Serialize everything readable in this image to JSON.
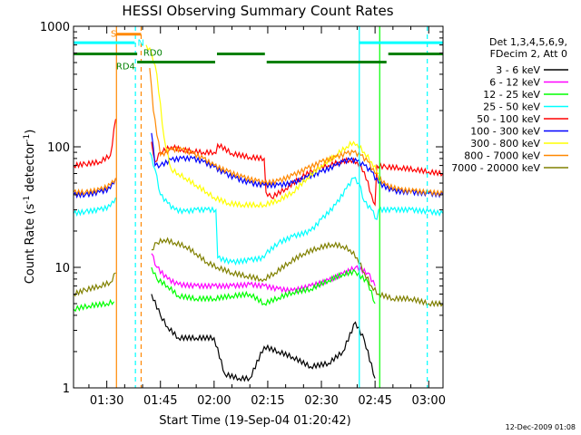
{
  "chart_data": {
    "type": "line",
    "title": "HESSI Observing Summary Count Rates",
    "xlabel": "Start Time (19-Sep-04 01:20:42)",
    "ylabel_main": "Count Rate (s",
    "ylabel_sup1": "-1",
    "ylabel_mid": " detector",
    "ylabel_sup2": "-1",
    "ylabel_end": ")",
    "yscale": "log",
    "ylim": [
      1,
      1000
    ],
    "xlim_min": [
      80.7,
      184
    ],
    "y_ticks": [
      {
        "v": 1,
        "label": "1"
      },
      {
        "v": 10,
        "label": "10"
      },
      {
        "v": 100,
        "label": "100"
      },
      {
        "v": 1000,
        "label": "1000"
      }
    ],
    "x_ticks": [
      {
        "t": 90,
        "label": "01:30"
      },
      {
        "t": 105,
        "label": "01:45"
      },
      {
        "t": 120,
        "label": "02:00"
      },
      {
        "t": 135,
        "label": "02:15"
      },
      {
        "t": 150,
        "label": "02:30"
      },
      {
        "t": 165,
        "label": "02:45"
      },
      {
        "t": 180,
        "label": "03:00"
      }
    ],
    "legend": {
      "position": "right",
      "header": [
        "Det 1,3,4,5,6,9,",
        "FDecim 2, Att 0"
      ]
    },
    "series": [
      {
        "name": "3 - 6 keV",
        "color": "#000000",
        "x": [
          80.7,
          87,
          92.5,
          100,
          102.5,
          105,
          107,
          110,
          115,
          120,
          123,
          127,
          130,
          134,
          138,
          142,
          147,
          152,
          156,
          159.5,
          162,
          165,
          166.5
        ],
        "y": [
          null,
          null,
          null,
          null,
          6,
          4,
          3.2,
          2.6,
          2.6,
          2.6,
          1.3,
          1.2,
          1.2,
          2.2,
          2.0,
          1.8,
          1.5,
          1.6,
          2.0,
          3.5,
          2.5,
          1.2,
          null
        ]
      },
      {
        "name": "6 - 12 keV",
        "color": "#ff00ff",
        "x": [
          80.7,
          100,
          102.5,
          104,
          107,
          110,
          115,
          120,
          125,
          130,
          134,
          138,
          142,
          147,
          152,
          156,
          159.5,
          163,
          165,
          166.5
        ],
        "y": [
          null,
          null,
          13,
          10,
          8,
          7.2,
          7.0,
          7.0,
          7.0,
          7.2,
          7.0,
          6.6,
          6.4,
          7.0,
          7.8,
          8.8,
          10,
          9.0,
          7.0,
          null
        ]
      },
      {
        "name": "12 - 25 keV",
        "color": "#00ff00",
        "x": [
          80.7,
          85,
          90,
          92,
          93,
          100,
          102.5,
          104,
          107,
          110,
          115,
          120,
          125,
          130,
          134,
          138,
          142,
          147,
          152,
          156,
          159.5,
          163,
          165,
          166.5,
          172,
          178,
          184
        ],
        "y": [
          4.5,
          4.8,
          5.0,
          5.2,
          null,
          null,
          10,
          8,
          7.0,
          5.8,
          5.5,
          5.5,
          5.8,
          6.0,
          5.0,
          5.6,
          6.2,
          6.6,
          7.8,
          8.8,
          9.2,
          7.5,
          5.0,
          null,
          null,
          null,
          null
        ]
      },
      {
        "name": "25 - 50 keV",
        "color": "#00ffff",
        "x": [
          80.7,
          84,
          88,
          91,
          92.5,
          93.5,
          100,
          102,
          103.5,
          105,
          107,
          109,
          112,
          115,
          118,
          120.5,
          121,
          125,
          130,
          134,
          134.5,
          138,
          142,
          147,
          150,
          154,
          157,
          159,
          160.5,
          162,
          164,
          165.5,
          166,
          170,
          175,
          180,
          184
        ],
        "y": [
          28,
          29,
          30,
          32,
          38,
          null,
          null,
          90,
          65,
          40,
          34,
          30,
          29,
          30,
          30,
          30,
          12,
          11,
          11.5,
          12,
          13,
          16,
          18,
          20,
          25,
          33,
          45,
          55,
          50,
          35,
          30,
          25,
          30,
          30,
          30,
          29,
          28
        ]
      },
      {
        "name": "50 - 100 keV",
        "color": "#ff0000",
        "x": [
          80.7,
          84,
          88,
          91,
          92.5,
          93.5,
          100,
          102.5,
          103.5,
          105,
          108,
          111,
          114,
          117,
          120,
          120.5,
          121,
          125,
          130,
          134,
          134.5,
          136,
          140,
          144,
          148,
          152,
          155,
          158,
          160,
          162,
          164,
          165,
          165.5,
          168,
          172,
          176,
          180,
          184
        ],
        "y": [
          70,
          72,
          75,
          85,
          170,
          null,
          null,
          110,
          75,
          90,
          100,
          95,
          92,
          90,
          90,
          88,
          105,
          88,
          82,
          80,
          42,
          38,
          45,
          55,
          65,
          70,
          75,
          78,
          75,
          62,
          40,
          33,
          70,
          68,
          67,
          65,
          62,
          60
        ]
      },
      {
        "name": "100 - 300 keV",
        "color": "#0000ff",
        "x": [
          80.7,
          84,
          88,
          91,
          92.5,
          93.5,
          100,
          102.5,
          103.5,
          105,
          108,
          111,
          114,
          117,
          120,
          123,
          126,
          130,
          134,
          138,
          142,
          146,
          150,
          154,
          156,
          158,
          160,
          162,
          164,
          166,
          170,
          175,
          180,
          184
        ],
        "y": [
          40,
          40,
          42,
          45,
          55,
          null,
          null,
          130,
          70,
          70,
          78,
          80,
          80,
          75,
          68,
          60,
          55,
          50,
          48,
          48,
          50,
          56,
          62,
          70,
          75,
          78,
          76,
          70,
          62,
          50,
          43,
          42,
          41,
          40
        ]
      },
      {
        "name": "300 - 800 keV",
        "color": "#ffff00",
        "x": [
          80.7,
          100,
          101,
          102.5,
          104,
          106,
          108,
          110,
          112,
          115,
          118,
          120,
          124,
          128,
          132,
          134,
          138,
          142,
          146,
          150,
          154,
          157,
          159,
          160,
          162,
          164,
          166,
          170,
          175,
          180,
          184
        ],
        "y": [
          null,
          null,
          700,
          600,
          400,
          120,
          65,
          60,
          55,
          48,
          42,
          38,
          34,
          33,
          33,
          33,
          36,
          42,
          55,
          70,
          85,
          100,
          110,
          105,
          90,
          75,
          60,
          null,
          null,
          null,
          null
        ]
      },
      {
        "name": "800 - 7000 keV",
        "color": "#ff8800",
        "x": [
          80.7,
          84,
          88,
          91,
          92.5,
          93.5,
          100,
          102,
          103,
          105,
          108,
          111,
          114,
          117,
          120,
          124,
          128,
          132,
          134,
          138,
          142,
          146,
          150,
          154,
          157,
          159,
          161,
          163,
          165,
          168,
          172,
          176,
          180,
          184
        ],
        "y": [
          42,
          42,
          44,
          48,
          55,
          null,
          null,
          450,
          200,
          85,
          95,
          95,
          88,
          80,
          70,
          62,
          56,
          52,
          50,
          52,
          58,
          66,
          75,
          82,
          88,
          90,
          85,
          75,
          60,
          48,
          44,
          43,
          42,
          41
        ]
      },
      {
        "name": "7000 - 20000 keV",
        "color": "#808000",
        "x": [
          80.7,
          84,
          88,
          91,
          92.5,
          93.5,
          100,
          102.5,
          104,
          106,
          109,
          112,
          115,
          118,
          121,
          125,
          129,
          133,
          134,
          137,
          141,
          145,
          149,
          153,
          156,
          158,
          160,
          162,
          164,
          166,
          170,
          175,
          180,
          184
        ],
        "y": [
          6.0,
          6.5,
          7.0,
          7.5,
          9.0,
          null,
          null,
          14,
          16,
          17,
          16,
          15,
          13,
          11,
          10,
          9,
          8.5,
          8,
          8,
          9,
          11,
          13,
          14.5,
          15.5,
          15,
          14,
          12,
          9,
          7,
          6,
          5.5,
          5.5,
          5.0,
          5.0
        ]
      }
    ],
    "markers": {
      "vlines": [
        {
          "t": 92.7,
          "color": "#ff8800",
          "style": "solid"
        },
        {
          "t": 98.0,
          "color": "#00ffff",
          "style": "dashed"
        },
        {
          "t": 99.6,
          "color": "#ff8800",
          "style": "dashed"
        },
        {
          "t": 160.6,
          "color": "#00ffff",
          "style": "solid"
        },
        {
          "t": 166.3,
          "color": "#00ff00",
          "style": "solid"
        },
        {
          "t": 179.6,
          "color": "#00ffff",
          "style": "dashed"
        }
      ],
      "bars": [
        {
          "t0": 80.7,
          "t1": 97.8,
          "level": 730,
          "color": "#00ffff"
        },
        {
          "t0": 160.6,
          "t1": 184,
          "level": 730,
          "color": "#00ffff"
        },
        {
          "t0": 92.7,
          "t1": 99.6,
          "level": 860,
          "color": "#ff8800"
        },
        {
          "t0": 80.7,
          "t1": 98.5,
          "level": 590,
          "color": "#008000"
        },
        {
          "t0": 98.5,
          "t1": 120.3,
          "level": 505,
          "color": "#008000"
        },
        {
          "t0": 120.8,
          "t1": 134.2,
          "level": 590,
          "color": "#008000"
        },
        {
          "t0": 134.7,
          "t1": 168.2,
          "level": 505,
          "color": "#008000"
        },
        {
          "t0": 168.7,
          "t1": 184,
          "level": 590,
          "color": "#008000"
        }
      ],
      "labels": [
        {
          "text": "S",
          "t": 91.1,
          "level": 880,
          "color": "#ff8800"
        },
        {
          "text": "N",
          "t": 98.6,
          "level": 740,
          "color": "#00ffff"
        },
        {
          "text": "RD0",
          "t": 100.2,
          "level": 610,
          "color": "#008000"
        },
        {
          "text": "RD4",
          "t": 92.6,
          "level": 470,
          "color": "#008000"
        }
      ]
    }
  },
  "footer": {
    "timestamp": "12-Dec-2009 01:08"
  }
}
